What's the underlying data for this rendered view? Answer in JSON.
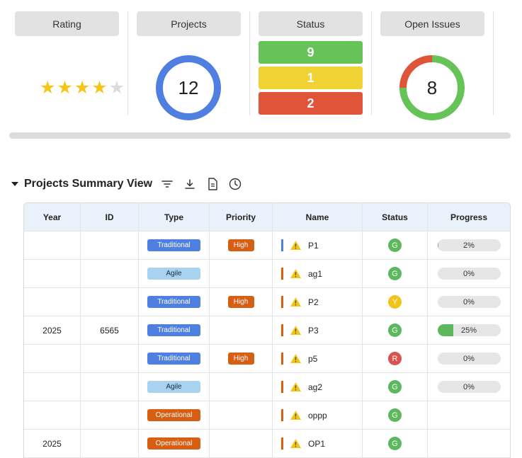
{
  "kpis": {
    "rating": {
      "title": "Rating",
      "stars_filled": 4,
      "stars_total": 5
    },
    "projects": {
      "title": "Projects",
      "count": "12"
    },
    "status": {
      "title": "Status",
      "green": "9",
      "yellow": "1",
      "red": "2"
    },
    "open_issues": {
      "title": "Open Issues",
      "count": "8",
      "red_fraction": 0.25
    }
  },
  "colors": {
    "green": "#65c358",
    "yellow": "#f0d232",
    "red": "#e0553a",
    "blue": "#4f80e1"
  },
  "section": {
    "title": "Projects Summary View",
    "tools": [
      "filter-icon",
      "download-icon",
      "document-icon",
      "clock-icon"
    ]
  },
  "table": {
    "headers": {
      "year": "Year",
      "id": "ID",
      "type": "Type",
      "priority": "Priority",
      "name": "Name",
      "status": "Status",
      "progress": "Progress"
    },
    "rows": [
      {
        "year": "",
        "id": "",
        "type": "Traditional",
        "priority": "High",
        "flag": "blue",
        "name": "P1",
        "status": "G",
        "progress": "2%",
        "progress_value": 2
      },
      {
        "year": "",
        "id": "",
        "type": "Agile",
        "priority": "",
        "flag": "orange",
        "name": "ag1",
        "status": "G",
        "progress": "0%",
        "progress_value": 0
      },
      {
        "year": "",
        "id": "",
        "type": "Traditional",
        "priority": "High",
        "flag": "orange",
        "name": "P2",
        "status": "Y",
        "progress": "0%",
        "progress_value": 0
      },
      {
        "year": "2025",
        "id": "6565",
        "type": "Traditional",
        "priority": "",
        "flag": "orange",
        "name": "P3",
        "status": "G",
        "progress": "25%",
        "progress_value": 25
      },
      {
        "year": "",
        "id": "",
        "type": "Traditional",
        "priority": "High",
        "flag": "orange",
        "name": "p5",
        "status": "R",
        "progress": "0%",
        "progress_value": 0
      },
      {
        "year": "",
        "id": "",
        "type": "Agile",
        "priority": "",
        "flag": "orange",
        "name": "ag2",
        "status": "G",
        "progress": "0%",
        "progress_value": 0
      },
      {
        "year": "",
        "id": "",
        "type": "Operational",
        "priority": "",
        "flag": "orange",
        "name": "oppp",
        "status": "G",
        "progress": "",
        "progress_value": null
      },
      {
        "year": "2025",
        "id": "",
        "type": "Operational",
        "priority": "",
        "flag": "orange",
        "name": "OP1",
        "status": "G",
        "progress": "",
        "progress_value": null
      }
    ]
  }
}
